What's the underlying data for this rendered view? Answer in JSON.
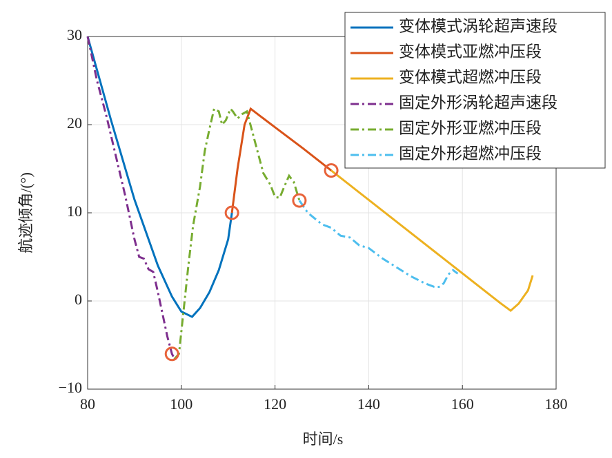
{
  "chart_data": {
    "type": "line",
    "xlabel": "时间/s",
    "ylabel": "航迹倾角/(°)",
    "xlim": [
      80,
      180
    ],
    "xticks": [
      80,
      100,
      120,
      140,
      160,
      180
    ],
    "ylim": [
      -10,
      30
    ],
    "yticks": [
      {
        "value": -10,
        "label": "−10"
      },
      0,
      10,
      20,
      30
    ],
    "grid": true,
    "legend": "upper right",
    "series": [
      {
        "name": "变体模式涡轮超声速段",
        "color": "#0072bd",
        "style": "solid",
        "x": [
          80,
          85,
          90,
          95,
          98,
          100,
          102.3,
          104,
          106,
          108,
          110,
          110.8
        ],
        "values": [
          30,
          20.5,
          11.5,
          4,
          0.5,
          -1.2,
          -1.8,
          -0.8,
          1,
          3.5,
          7,
          10
        ]
      },
      {
        "name": "变体模式亚燃冲压段",
        "color": "#d95319",
        "style": "solid",
        "x": [
          110.8,
          112,
          113.5,
          114.8,
          120,
          126,
          132
        ],
        "values": [
          10,
          15,
          20,
          21.8,
          19.7,
          17.3,
          14.8
        ]
      },
      {
        "name": "变体模式超燃冲压段",
        "color": "#edb120",
        "style": "solid",
        "x": [
          132,
          150,
          168,
          170.3,
          172,
          174,
          175
        ],
        "values": [
          14.8,
          7.3,
          -0.2,
          -1.1,
          -0.3,
          1.2,
          2.9
        ]
      },
      {
        "name": "固定外形涡轮超声速段",
        "color": "#7e2f8e",
        "style": "dashdot",
        "x": [
          80,
          82,
          84,
          86,
          88,
          90,
          91,
          92,
          93,
          94,
          95,
          96,
          97,
          98,
          98.5
        ],
        "values": [
          30,
          25,
          21,
          16.5,
          12,
          7,
          5,
          4.8,
          3.6,
          3.3,
          1,
          -1.5,
          -4,
          -6,
          -6.5
        ]
      },
      {
        "name": "固定外形亚燃冲压段",
        "color": "#77ac30",
        "style": "dashdot",
        "x": [
          98.5,
          99.5,
          100.5,
          101.5,
          102.5,
          104,
          105,
          106,
          107,
          108,
          108.7,
          109.5,
          110.5,
          111,
          112,
          113,
          114,
          115,
          116.5,
          117.5,
          119,
          120,
          121,
          122,
          123,
          124,
          125.2
        ],
        "values": [
          -6.6,
          -6,
          -1,
          4,
          8.5,
          13,
          17,
          19.5,
          21.8,
          21.5,
          20,
          20.5,
          21.8,
          21.5,
          20.7,
          21.2,
          21.5,
          19.5,
          16.5,
          14.5,
          13.2,
          11.8,
          11.7,
          13,
          14.2,
          13.5,
          11.4
        ]
      },
      {
        "name": "固定外形超燃冲压段",
        "color": "#4dbeee",
        "style": "dashdot",
        "x": [
          125.2,
          127,
          130,
          132,
          134,
          136,
          138,
          140,
          143,
          146,
          149,
          152,
          154,
          155,
          156,
          157,
          158,
          159
        ],
        "values": [
          11.4,
          10,
          8.7,
          8.3,
          7.4,
          7.2,
          6.3,
          6,
          4.8,
          3.8,
          2.8,
          2,
          1.6,
          1.6,
          2,
          3,
          3.5,
          3.1
        ]
      }
    ],
    "markers": {
      "color": "#e8633a",
      "x": [
        98,
        110.8,
        125.2,
        132
      ],
      "y": [
        -6,
        10,
        11.4,
        14.8
      ]
    }
  }
}
